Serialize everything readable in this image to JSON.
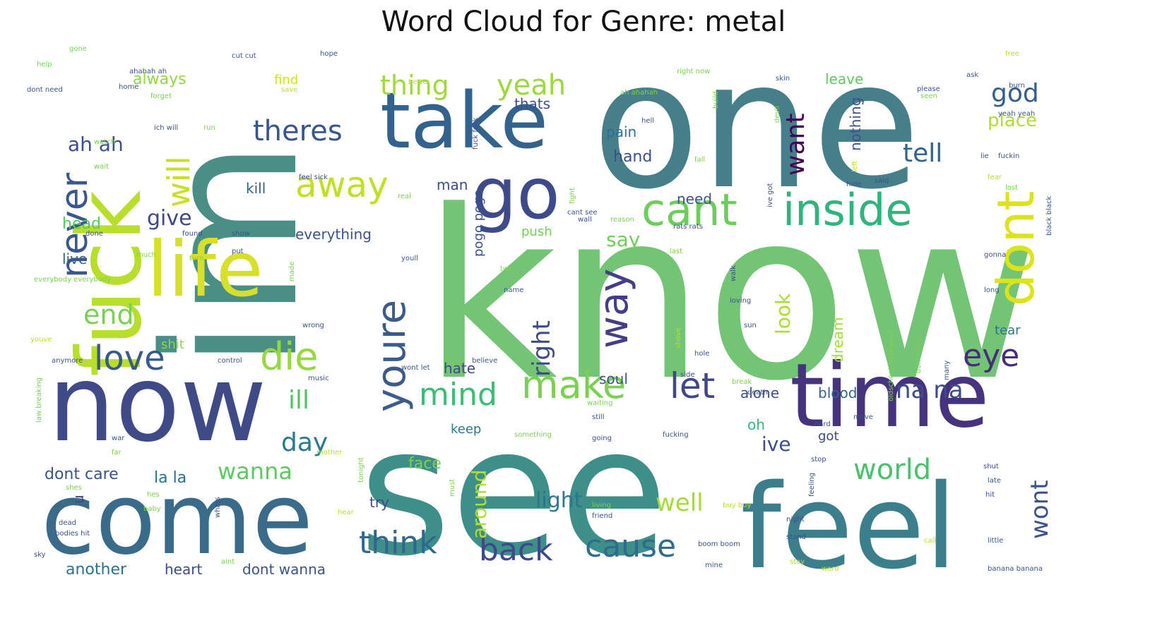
{
  "chart_data": {
    "type": "wordcloud",
    "title": "Word Cloud for Genre: metal",
    "words": [
      {
        "text": "know",
        "w": 100,
        "color": "#74c476"
      },
      {
        "text": "see",
        "w": 95,
        "color": "#3e8e8a"
      },
      {
        "text": "one",
        "w": 93,
        "color": "#467f8a"
      },
      {
        "text": "im",
        "w": 90,
        "color": "#4a8e86"
      },
      {
        "text": "feel",
        "w": 66,
        "color": "#3c7f8c"
      },
      {
        "text": "time",
        "w": 58,
        "color": "#46337e"
      },
      {
        "text": "come",
        "w": 60,
        "color": "#3b6b8a"
      },
      {
        "text": "now",
        "w": 62,
        "color": "#404a86"
      },
      {
        "text": "fuck",
        "w": 48,
        "color": "#b6de2b"
      },
      {
        "text": "take",
        "w": 46,
        "color": "#33628d"
      },
      {
        "text": "life",
        "w": 44,
        "color": "#d6e02a"
      },
      {
        "text": "go",
        "w": 40,
        "color": "#3e4a89"
      },
      {
        "text": "dont",
        "w": 30,
        "color": "#dce319"
      },
      {
        "text": "cant",
        "w": 26,
        "color": "#6ccd5a"
      },
      {
        "text": "inside",
        "w": 26,
        "color": "#2fb47c"
      },
      {
        "text": "youre",
        "w": 24,
        "color": "#3b5b8b"
      },
      {
        "text": "way",
        "w": 24,
        "color": "#433e85"
      },
      {
        "text": "never",
        "w": 22,
        "color": "#3a568c"
      },
      {
        "text": "die",
        "w": 22,
        "color": "#95d840"
      },
      {
        "text": "make",
        "w": 22,
        "color": "#7ad151"
      },
      {
        "text": "let",
        "w": 20,
        "color": "#404788"
      },
      {
        "text": "away",
        "w": 20,
        "color": "#c2df23"
      },
      {
        "text": "love",
        "w": 20,
        "color": "#38598c"
      },
      {
        "text": "eye",
        "w": 18,
        "color": "#472d7b"
      },
      {
        "text": "mind",
        "w": 18,
        "color": "#3ebc73"
      },
      {
        "text": "cause",
        "w": 17,
        "color": "#2f6c8e"
      },
      {
        "text": "back",
        "w": 17,
        "color": "#3f4889"
      },
      {
        "text": "think",
        "w": 17,
        "color": "#31668e"
      },
      {
        "text": "will",
        "w": 16,
        "color": "#c8e020"
      },
      {
        "text": "world",
        "w": 16,
        "color": "#4ac16d"
      },
      {
        "text": "theres",
        "w": 16,
        "color": "#39568c"
      },
      {
        "text": "yeah",
        "w": 16,
        "color": "#9bd93c"
      },
      {
        "text": "end",
        "w": 15,
        "color": "#7ad151"
      },
      {
        "text": "thing",
        "w": 15,
        "color": "#a0da39"
      },
      {
        "text": "na na",
        "w": 14,
        "color": "#3e4c8a"
      },
      {
        "text": "god",
        "w": 14,
        "color": "#365d8d"
      },
      {
        "text": "want",
        "w": 14,
        "color": "#440154"
      },
      {
        "text": "tell",
        "w": 14,
        "color": "#33638d"
      },
      {
        "text": "ill",
        "w": 14,
        "color": "#52c569"
      },
      {
        "text": "day",
        "w": 14,
        "color": "#2a788e"
      },
      {
        "text": "wanna",
        "w": 13,
        "color": "#5ec962"
      },
      {
        "text": "well",
        "w": 13,
        "color": "#a5db36"
      },
      {
        "text": "wont",
        "w": 13,
        "color": "#3b528b"
      },
      {
        "text": "right",
        "w": 13,
        "color": "#3e4989"
      },
      {
        "text": "give",
        "w": 12,
        "color": "#404688"
      },
      {
        "text": "ah ah",
        "w": 12,
        "color": "#3d4e8a"
      },
      {
        "text": "light",
        "w": 12,
        "color": "#2a768e"
      },
      {
        "text": "look",
        "w": 12,
        "color": "#addc30"
      },
      {
        "text": "place",
        "w": 11,
        "color": "#b0dd2f"
      },
      {
        "text": "say",
        "w": 11,
        "color": "#6ece58"
      },
      {
        "text": "ive",
        "w": 11,
        "color": "#3e4c8a"
      },
      {
        "text": "around",
        "w": 11,
        "color": "#b5de2b"
      },
      {
        "text": "another",
        "w": 10,
        "color": "#2c728e"
      },
      {
        "text": "la la",
        "w": 10,
        "color": "#2c718e"
      },
      {
        "text": "dont care",
        "w": 10,
        "color": "#3b528b"
      },
      {
        "text": "head",
        "w": 10,
        "color": "#5cc863"
      },
      {
        "text": "hand",
        "w": 10,
        "color": "#3c4f8a"
      },
      {
        "text": "always",
        "w": 10,
        "color": "#8fd744"
      },
      {
        "text": "face",
        "w": 10,
        "color": "#7ad151"
      },
      {
        "text": "kill",
        "w": 9,
        "color": "#355f8d"
      },
      {
        "text": "pain",
        "w": 9,
        "color": "#2d708e"
      },
      {
        "text": "need",
        "w": 9,
        "color": "#3b528b"
      },
      {
        "text": "blood",
        "w": 9,
        "color": "#33638d"
      },
      {
        "text": "heart",
        "w": 9,
        "color": "#3e4989"
      },
      {
        "text": "dont wanna",
        "w": 9,
        "color": "#3b528b"
      },
      {
        "text": "hate",
        "w": 9,
        "color": "#404688"
      },
      {
        "text": "soul",
        "w": 9,
        "color": "#3b528b"
      },
      {
        "text": "dream",
        "w": 9,
        "color": "#a5db36"
      },
      {
        "text": "man",
        "w": 9,
        "color": "#3e4c8a"
      },
      {
        "text": "everything",
        "w": 9,
        "color": "#3b528b"
      },
      {
        "text": "nothing",
        "w": 9,
        "color": "#3b528b"
      },
      {
        "text": "thats",
        "w": 9,
        "color": "#3d4d8a"
      },
      {
        "text": "pogo pogo",
        "w": 9,
        "color": "#3b528b"
      },
      {
        "text": "keep",
        "w": 9,
        "color": "#2a788e"
      },
      {
        "text": "live",
        "w": 9,
        "color": "#33638d"
      },
      {
        "text": "alone",
        "w": 9,
        "color": "#3e4c8a"
      },
      {
        "text": "oh",
        "w": 9,
        "color": "#35b779"
      },
      {
        "text": "got",
        "w": 9,
        "color": "#404688"
      },
      {
        "text": "tear",
        "w": 9,
        "color": "#2c728e"
      },
      {
        "text": "leave",
        "w": 9,
        "color": "#5ec962"
      },
      {
        "text": "try",
        "w": 9,
        "color": "#3e4989"
      },
      {
        "text": "shit",
        "w": 8,
        "color": "#8fd744"
      },
      {
        "text": "push",
        "w": 8,
        "color": "#73d056"
      },
      {
        "text": "find",
        "w": 8,
        "color": "#d0e11c"
      },
      {
        "text": "u",
        "w": 8,
        "color": "#404688"
      },
      {
        "text": "gone",
        "w": 3,
        "color": "#7ad151"
      },
      {
        "text": "help",
        "w": 3,
        "color": "#7ad151"
      },
      {
        "text": "dont need",
        "w": 3,
        "color": "#3b528b"
      },
      {
        "text": "cut cut",
        "w": 3,
        "color": "#3b528b"
      },
      {
        "text": "hope",
        "w": 3,
        "color": "#3b528b"
      },
      {
        "text": "ahahah ah",
        "w": 3,
        "color": "#3b528b"
      },
      {
        "text": "home",
        "w": 3,
        "color": "#3b528b"
      },
      {
        "text": "forget",
        "w": 3,
        "color": "#7ad151"
      },
      {
        "text": "save",
        "w": 3,
        "color": "#b5de2b"
      },
      {
        "text": "better",
        "w": 3,
        "color": "#b5de2b"
      },
      {
        "text": "ah ahahah",
        "w": 3,
        "color": "#7ad151"
      },
      {
        "text": "right now",
        "w": 3,
        "color": "#7ad151"
      },
      {
        "text": "build",
        "w": 3,
        "color": "#7ad151"
      },
      {
        "text": "skin",
        "w": 3,
        "color": "#3b528b"
      },
      {
        "text": "ask",
        "w": 3,
        "color": "#3b528b"
      },
      {
        "text": "free",
        "w": 3,
        "color": "#b5de2b"
      },
      {
        "text": "burn",
        "w": 3,
        "color": "#3b528b"
      },
      {
        "text": "please",
        "w": 3,
        "color": "#3b528b"
      },
      {
        "text": "seen",
        "w": 3,
        "color": "#7ad151"
      },
      {
        "text": "yeah yeah",
        "w": 3,
        "color": "#3b528b"
      },
      {
        "text": "ich will",
        "w": 3,
        "color": "#3b528b"
      },
      {
        "text": "run",
        "w": 3,
        "color": "#7ad151"
      },
      {
        "text": "watch",
        "w": 3,
        "color": "#7ad151"
      },
      {
        "text": "wait",
        "w": 3,
        "color": "#7ad151"
      },
      {
        "text": "feel sick",
        "w": 3,
        "color": "#3b528b"
      },
      {
        "text": "fuck fuck",
        "w": 3,
        "color": "#3b528b"
      },
      {
        "text": "hell",
        "w": 3,
        "color": "#3b528b"
      },
      {
        "text": "devil",
        "w": 3,
        "color": "#7ad151"
      },
      {
        "text": "fall",
        "w": 3,
        "color": "#7ad151"
      },
      {
        "text": "left",
        "w": 3,
        "color": "#b5de2b"
      },
      {
        "text": "lie",
        "w": 3,
        "color": "#3b528b"
      },
      {
        "text": "fuckin",
        "w": 3,
        "color": "#3b528b"
      },
      {
        "text": "fear",
        "w": 3,
        "color": "#b5de2b"
      },
      {
        "text": "lost",
        "w": 3,
        "color": "#7ad151"
      },
      {
        "text": "hide",
        "w": 3,
        "color": "#3b528b"
      },
      {
        "text": "said",
        "w": 3,
        "color": "#3b528b"
      },
      {
        "text": "ive got",
        "w": 3,
        "color": "#3b528b"
      },
      {
        "text": "fight",
        "w": 3,
        "color": "#7ad151"
      },
      {
        "text": "cant see",
        "w": 3,
        "color": "#3b528b"
      },
      {
        "text": "wall",
        "w": 3,
        "color": "#3b528b"
      },
      {
        "text": "reason",
        "w": 3,
        "color": "#7ad151"
      },
      {
        "text": "rats rats",
        "w": 3,
        "color": "#3b528b"
      },
      {
        "text": "black black",
        "w": 3,
        "color": "#3b528b"
      },
      {
        "text": "real",
        "w": 3,
        "color": "#7ad151"
      },
      {
        "text": "done",
        "w": 3,
        "color": "#3b528b"
      },
      {
        "text": "found",
        "w": 3,
        "color": "#3b528b"
      },
      {
        "text": "show",
        "w": 3,
        "color": "#3b528b"
      },
      {
        "text": "much",
        "w": 3,
        "color": "#7ad151"
      },
      {
        "text": "turn",
        "w": 3,
        "color": "#7ad151"
      },
      {
        "text": "put",
        "w": 3,
        "color": "#3b528b"
      },
      {
        "text": "last",
        "w": 3,
        "color": "#7ad151"
      },
      {
        "text": "youll",
        "w": 3,
        "color": "#3b528b"
      },
      {
        "text": "made",
        "w": 3,
        "color": "#7ad151"
      },
      {
        "text": "everybody everybody",
        "w": 3,
        "color": "#7ad151"
      },
      {
        "text": "two",
        "w": 3,
        "color": "#7ad151"
      },
      {
        "text": "name",
        "w": 3,
        "color": "#3b528b"
      },
      {
        "text": "walk",
        "w": 3,
        "color": "#3b528b"
      },
      {
        "text": "loving",
        "w": 3,
        "color": "#3b528b"
      },
      {
        "text": "gonna",
        "w": 3,
        "color": "#3b528b"
      },
      {
        "text": "long",
        "w": 3,
        "color": "#3b528b"
      },
      {
        "text": "wrong",
        "w": 3,
        "color": "#3b528b"
      },
      {
        "text": "sun",
        "w": 3,
        "color": "#3b528b"
      },
      {
        "text": "youve",
        "w": 3,
        "color": "#b5de2b"
      },
      {
        "text": "anymore",
        "w": 3,
        "color": "#3b528b"
      },
      {
        "text": "control",
        "w": 3,
        "color": "#3b528b"
      },
      {
        "text": "shove",
        "w": 3,
        "color": "#b5de2b"
      },
      {
        "text": "hole",
        "w": 3,
        "color": "#3b528b"
      },
      {
        "text": "side",
        "w": 3,
        "color": "#3b528b"
      },
      {
        "text": "wont let",
        "w": 3,
        "color": "#3b528b"
      },
      {
        "text": "believe",
        "w": 3,
        "color": "#3b528b"
      },
      {
        "text": "break",
        "w": 3,
        "color": "#7ad151"
      },
      {
        "text": "death",
        "w": 3,
        "color": "#3b528b"
      },
      {
        "text": "oldschool hollywood",
        "w": 3,
        "color": "#7ad151"
      },
      {
        "text": "dont know",
        "w": 3,
        "color": "#7ad151"
      },
      {
        "text": "many",
        "w": 3,
        "color": "#3b528b"
      },
      {
        "text": "law breaking",
        "w": 3,
        "color": "#7ad151"
      },
      {
        "text": "music",
        "w": 3,
        "color": "#3b528b"
      },
      {
        "text": "waiting",
        "w": 3,
        "color": "#7ad151"
      },
      {
        "text": "still",
        "w": 3,
        "color": "#3b528b"
      },
      {
        "text": "hard",
        "w": 3,
        "color": "#3b528b"
      },
      {
        "text": "move",
        "w": 3,
        "color": "#3b528b"
      },
      {
        "text": "war",
        "w": 3,
        "color": "#3b528b"
      },
      {
        "text": "far",
        "w": 3,
        "color": "#7ad151"
      },
      {
        "text": "something",
        "w": 3,
        "color": "#7ad151"
      },
      {
        "text": "going",
        "w": 3,
        "color": "#3b528b"
      },
      {
        "text": "fucking",
        "w": 3,
        "color": "#3b528b"
      },
      {
        "text": "mother",
        "w": 3,
        "color": "#b5de2b"
      },
      {
        "text": "tonight",
        "w": 3,
        "color": "#7ad151"
      },
      {
        "text": "must",
        "w": 3,
        "color": "#7ad151"
      },
      {
        "text": "stop",
        "w": 3,
        "color": "#3b528b"
      },
      {
        "text": "feeling",
        "w": 3,
        "color": "#3b528b"
      },
      {
        "text": "shut",
        "w": 3,
        "color": "#3b528b"
      },
      {
        "text": "late",
        "w": 3,
        "color": "#3b528b"
      },
      {
        "text": "hit",
        "w": 3,
        "color": "#3b528b"
      },
      {
        "text": "shes",
        "w": 3,
        "color": "#7ad151"
      },
      {
        "text": "hes",
        "w": 3,
        "color": "#7ad151"
      },
      {
        "text": "whats",
        "w": 3,
        "color": "#3b528b"
      },
      {
        "text": "baby",
        "w": 3,
        "color": "#7ad151"
      },
      {
        "text": "dead",
        "w": 3,
        "color": "#3b528b"
      },
      {
        "text": "bodies hit",
        "w": 3,
        "color": "#3b528b"
      },
      {
        "text": "hear",
        "w": 3,
        "color": "#b5de2b"
      },
      {
        "text": "living",
        "w": 3,
        "color": "#7ad151"
      },
      {
        "text": "friend",
        "w": 3,
        "color": "#3b528b"
      },
      {
        "text": "buy buy",
        "w": 3,
        "color": "#b5de2b"
      },
      {
        "text": "night",
        "w": 3,
        "color": "#3b528b"
      },
      {
        "text": "stand",
        "w": 3,
        "color": "#3b528b"
      },
      {
        "text": "call",
        "w": 3,
        "color": "#b5de2b"
      },
      {
        "text": "little",
        "w": 3,
        "color": "#3b528b"
      },
      {
        "text": "boom boom",
        "w": 3,
        "color": "#3b528b"
      },
      {
        "text": "sky",
        "w": 3,
        "color": "#3b528b"
      },
      {
        "text": "aint",
        "w": 3,
        "color": "#7ad151"
      },
      {
        "text": "mine",
        "w": 3,
        "color": "#3b528b"
      },
      {
        "text": "stay",
        "w": 3,
        "color": "#b5de2b"
      },
      {
        "text": "word",
        "w": 3,
        "color": "#b5de2b"
      },
      {
        "text": "banana banana",
        "w": 3,
        "color": "#3b528b"
      }
    ]
  }
}
